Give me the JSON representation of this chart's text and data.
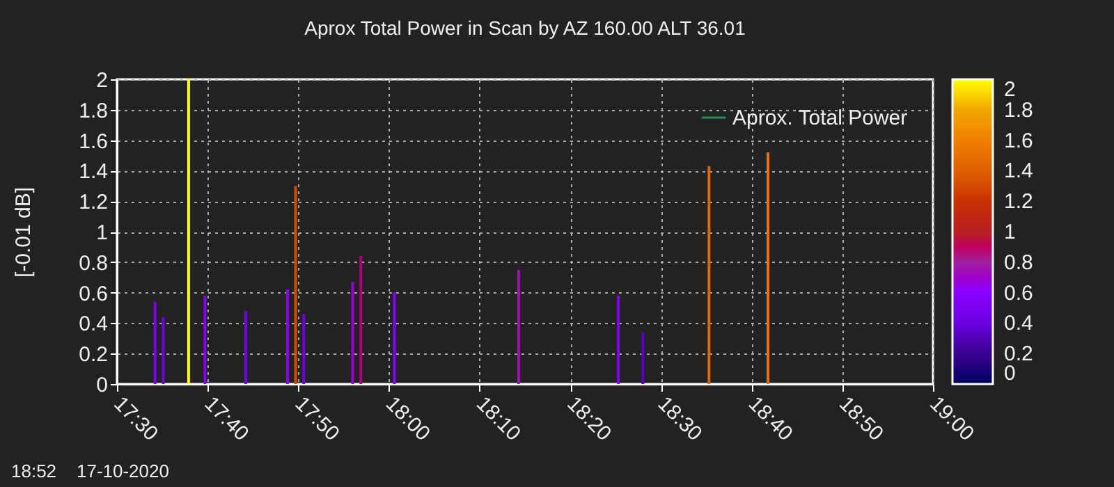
{
  "chart_data": {
    "type": "bar",
    "title": "Aprox Total Power in Scan by AZ 160.00  ALT 36.01",
    "ylabel": "[-0.01 dB]",
    "x": [
      "2020-10-17T17:34:12",
      "2020-10-17T17:35:06",
      "2020-10-17T17:37:54",
      "2020-10-17T17:39:42",
      "2020-10-17T17:44:12",
      "2020-10-17T17:48:48",
      "2020-10-17T17:49:42",
      "2020-10-17T17:50:36",
      "2020-10-17T17:56:00",
      "2020-10-17T17:56:54",
      "2020-10-17T18:00:36",
      "2020-10-17T18:14:18",
      "2020-10-17T18:25:18",
      "2020-10-17T18:28:00",
      "2020-10-17T18:35:18",
      "2020-10-17T18:41:48"
    ],
    "series": [
      {
        "name": "Aprox. Total Power",
        "values": [
          0.54,
          0.44,
          2.0,
          0.58,
          0.48,
          0.62,
          1.3,
          0.46,
          0.67,
          0.84,
          0.6,
          0.75,
          0.58,
          0.34,
          1.43,
          1.52
        ],
        "cvalues": [
          0.54,
          0.44,
          2.0,
          0.58,
          0.48,
          0.62,
          1.3,
          0.46,
          0.67,
          0.84,
          0.6,
          0.75,
          0.58,
          0.34,
          1.43,
          1.52
        ]
      }
    ],
    "xlim": [
      "2020-10-17T17:30",
      "2020-10-17T19:00"
    ],
    "xticks": [
      {
        "value": "2020-10-17T17:30",
        "label": "17:30"
      },
      {
        "value": "2020-10-17T17:40",
        "label": "17:40"
      },
      {
        "value": "2020-10-17T17:50",
        "label": "17:50"
      },
      {
        "value": "2020-10-17T18:00",
        "label": "18:00"
      },
      {
        "value": "2020-10-17T18:10",
        "label": "18:10"
      },
      {
        "value": "2020-10-17T18:20",
        "label": "18:20"
      },
      {
        "value": "2020-10-17T18:30",
        "label": "18:30"
      },
      {
        "value": "2020-10-17T18:40",
        "label": "18:40"
      },
      {
        "value": "2020-10-17T18:50",
        "label": "18:50"
      },
      {
        "value": "2020-10-17T19:00",
        "label": "19:00"
      }
    ],
    "ylim": [
      0,
      2
    ],
    "yticks": [
      0,
      0.2,
      0.4,
      0.6,
      0.8,
      1,
      1.2,
      1.4,
      1.6,
      1.8,
      2
    ],
    "clim": [
      0,
      2
    ],
    "cticks": [
      0,
      0.2,
      0.4,
      0.6,
      0.8,
      1,
      1.2,
      1.4,
      1.6,
      1.8,
      2
    ],
    "grid": true,
    "legend": "top right",
    "annotations": [
      "18:52    17-10-2020"
    ]
  }
}
